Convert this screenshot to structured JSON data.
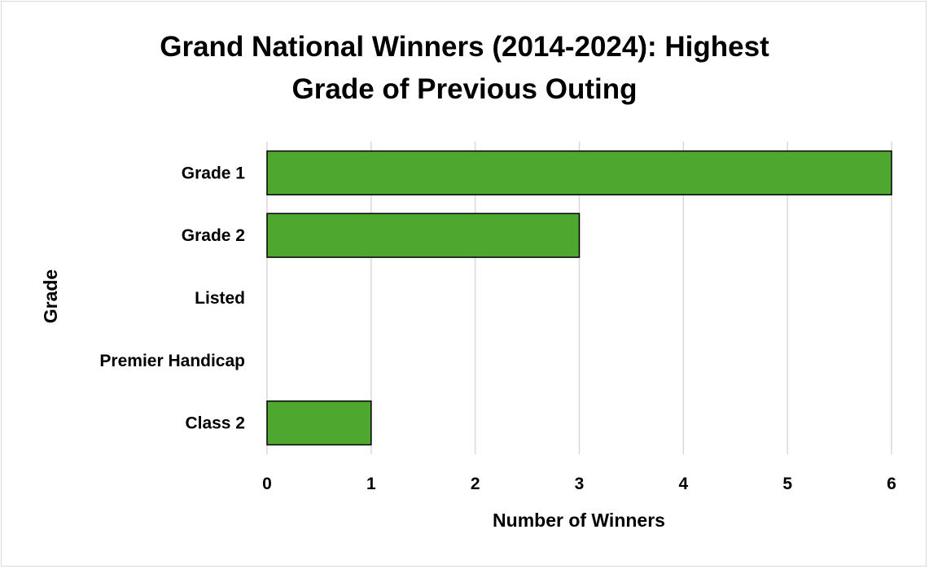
{
  "chart_data": {
    "type": "bar",
    "orientation": "horizontal",
    "title": "Grand National Winners (2014-2024): Highest Grade of Previous Outing",
    "title_lines": [
      "Grand National Winners (2014-2024): Highest",
      "Grade of Previous Outing"
    ],
    "xlabel": "Number of Winners",
    "ylabel": "Grade",
    "categories": [
      "Grade 1",
      "Grade 2",
      "Listed",
      "Premier Handicap",
      "Class 2"
    ],
    "values": [
      6,
      3,
      0,
      0,
      1
    ],
    "xlim": [
      0,
      6
    ],
    "xticks": [
      "0",
      "1",
      "2",
      "3",
      "4",
      "5",
      "6"
    ],
    "grid": "vertical",
    "legend": "none",
    "bar_color": "#4ea72e",
    "bar_border_color": "#000000",
    "grid_color": "#d9d9d9"
  }
}
